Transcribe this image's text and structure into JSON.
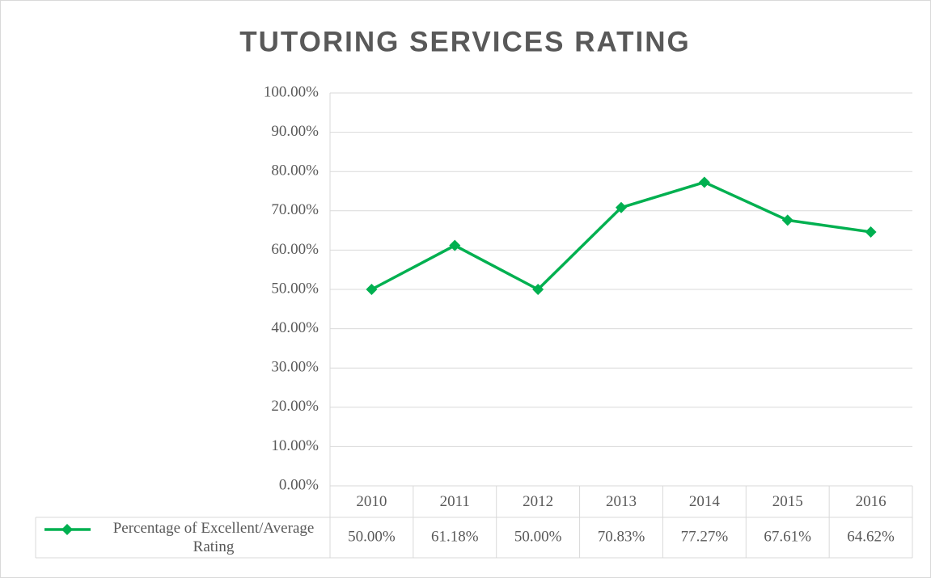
{
  "chart_data": {
    "type": "line",
    "title": "TUTORING SERVICES RATING",
    "categories": [
      "2010",
      "2011",
      "2012",
      "2013",
      "2014",
      "2015",
      "2016"
    ],
    "series": [
      {
        "name": "Percentage of Excellent/Average Rating",
        "color": "#00b050",
        "values": [
          50,
          61.18,
          50,
          70.83,
          77.27,
          67.61,
          64.62
        ],
        "value_labels": [
          "50.00%",
          "61.18%",
          "50.00%",
          "70.83%",
          "77.27%",
          "67.61%",
          "64.62%"
        ]
      }
    ],
    "ylim": [
      0,
      100
    ],
    "yticks": [
      {
        "value": 0,
        "label": "0.00%"
      },
      {
        "value": 10,
        "label": "10.00%"
      },
      {
        "value": 20,
        "label": "20.00%"
      },
      {
        "value": 30,
        "label": "30.00%"
      },
      {
        "value": 40,
        "label": "40.00%"
      },
      {
        "value": 50,
        "label": "50.00%"
      },
      {
        "value": 60,
        "label": "60.00%"
      },
      {
        "value": 70,
        "label": "70.00%"
      },
      {
        "value": 80,
        "label": "80.00%"
      },
      {
        "value": 90,
        "label": "90.00%"
      },
      {
        "value": 100,
        "label": "100.00%"
      }
    ],
    "grid": true,
    "data_table": true
  }
}
